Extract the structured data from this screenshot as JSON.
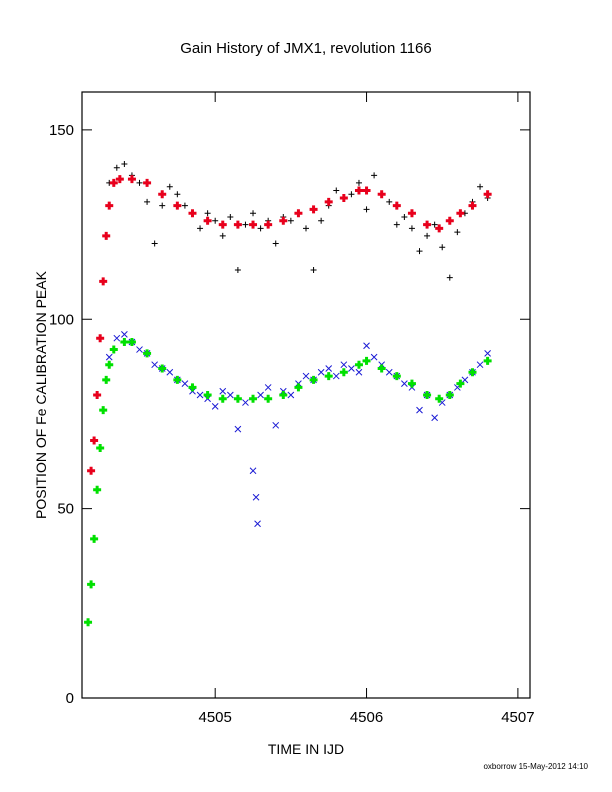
{
  "chart_data": {
    "type": "scatter",
    "title": "Gain History of JMX1, revolution 1166",
    "xlabel": "TIME IN IJD",
    "ylabel": "POSITION OF Fe CALIBRATION PEAK",
    "xlim": [
      4504.12,
      4507.08
    ],
    "ylim": [
      0,
      160
    ],
    "xticks": [
      4505,
      4506,
      4507
    ],
    "yticks": [
      0,
      50,
      100,
      150
    ],
    "grid": false,
    "footer": "oxborrow 15-May-2012 14:10",
    "series": [
      {
        "kind": "raw",
        "marker": "plus",
        "color": "#000000",
        "data": [
          [
            4504.3,
            136
          ],
          [
            4504.35,
            140
          ],
          [
            4504.4,
            141
          ],
          [
            4504.45,
            138
          ],
          [
            4504.5,
            136
          ],
          [
            4504.55,
            131
          ],
          [
            4504.6,
            120
          ],
          [
            4504.65,
            130
          ],
          [
            4504.7,
            135
          ],
          [
            4504.75,
            133
          ],
          [
            4504.8,
            130
          ],
          [
            4504.85,
            128
          ],
          [
            4504.9,
            124
          ],
          [
            4504.95,
            128
          ],
          [
            4505.0,
            126
          ],
          [
            4505.05,
            122
          ],
          [
            4505.1,
            127
          ],
          [
            4505.15,
            113
          ],
          [
            4505.2,
            125
          ],
          [
            4505.25,
            128
          ],
          [
            4505.3,
            124
          ],
          [
            4505.35,
            126
          ],
          [
            4505.4,
            120
          ],
          [
            4505.45,
            127
          ],
          [
            4505.5,
            126
          ],
          [
            4505.55,
            128
          ],
          [
            4505.6,
            124
          ],
          [
            4505.65,
            113
          ],
          [
            4505.7,
            126
          ],
          [
            4505.75,
            130
          ],
          [
            4505.8,
            134
          ],
          [
            4505.85,
            132
          ],
          [
            4505.9,
            133
          ],
          [
            4505.95,
            136
          ],
          [
            4506.0,
            129
          ],
          [
            4506.05,
            138
          ],
          [
            4506.1,
            133
          ],
          [
            4506.15,
            131
          ],
          [
            4506.2,
            125
          ],
          [
            4506.25,
            127
          ],
          [
            4506.3,
            124
          ],
          [
            4506.35,
            118
          ],
          [
            4506.4,
            122
          ],
          [
            4506.45,
            125
          ],
          [
            4506.5,
            119
          ],
          [
            4506.55,
            111
          ],
          [
            4506.6,
            123
          ],
          [
            4506.65,
            128
          ],
          [
            4506.7,
            131
          ],
          [
            4506.75,
            135
          ],
          [
            4506.8,
            132
          ]
        ]
      },
      {
        "kind": "fit",
        "marker": "plus",
        "color": "#e8001c",
        "data": [
          [
            4504.18,
            60
          ],
          [
            4504.2,
            68
          ],
          [
            4504.22,
            80
          ],
          [
            4504.24,
            95
          ],
          [
            4504.26,
            110
          ],
          [
            4504.28,
            122
          ],
          [
            4504.3,
            130
          ],
          [
            4504.33,
            136
          ],
          [
            4504.37,
            137
          ],
          [
            4504.45,
            137
          ],
          [
            4504.55,
            136
          ],
          [
            4504.65,
            133
          ],
          [
            4504.75,
            130
          ],
          [
            4504.85,
            128
          ],
          [
            4504.95,
            126
          ],
          [
            4505.05,
            125
          ],
          [
            4505.15,
            125
          ],
          [
            4505.25,
            125
          ],
          [
            4505.35,
            125
          ],
          [
            4505.45,
            126
          ],
          [
            4505.55,
            128
          ],
          [
            4505.65,
            129
          ],
          [
            4505.75,
            131
          ],
          [
            4505.85,
            132
          ],
          [
            4505.95,
            134
          ],
          [
            4506.0,
            134
          ],
          [
            4506.1,
            133
          ],
          [
            4506.2,
            130
          ],
          [
            4506.3,
            128
          ],
          [
            4506.4,
            125
          ],
          [
            4506.48,
            124
          ],
          [
            4506.55,
            126
          ],
          [
            4506.62,
            128
          ],
          [
            4506.7,
            130
          ],
          [
            4506.8,
            133
          ]
        ]
      },
      {
        "kind": "raw",
        "marker": "cross",
        "color": "#1a1ad4",
        "data": [
          [
            4504.3,
            90
          ],
          [
            4504.35,
            95
          ],
          [
            4504.4,
            96
          ],
          [
            4504.45,
            94
          ],
          [
            4504.5,
            92
          ],
          [
            4504.55,
            91
          ],
          [
            4504.6,
            88
          ],
          [
            4504.65,
            87
          ],
          [
            4504.7,
            86
          ],
          [
            4504.75,
            84
          ],
          [
            4504.8,
            83
          ],
          [
            4504.85,
            81
          ],
          [
            4504.9,
            80
          ],
          [
            4504.95,
            79
          ],
          [
            4505.0,
            77
          ],
          [
            4505.05,
            81
          ],
          [
            4505.1,
            80
          ],
          [
            4505.15,
            71
          ],
          [
            4505.2,
            78
          ],
          [
            4505.25,
            60
          ],
          [
            4505.27,
            53
          ],
          [
            4505.28,
            46
          ],
          [
            4505.3,
            80
          ],
          [
            4505.35,
            82
          ],
          [
            4505.4,
            72
          ],
          [
            4505.45,
            81
          ],
          [
            4505.5,
            80
          ],
          [
            4505.55,
            83
          ],
          [
            4505.6,
            85
          ],
          [
            4505.65,
            84
          ],
          [
            4505.7,
            86
          ],
          [
            4505.75,
            87
          ],
          [
            4505.8,
            85
          ],
          [
            4505.85,
            88
          ],
          [
            4505.9,
            87
          ],
          [
            4505.95,
            86
          ],
          [
            4506.0,
            93
          ],
          [
            4506.05,
            90
          ],
          [
            4506.1,
            88
          ],
          [
            4506.15,
            86
          ],
          [
            4506.2,
            85
          ],
          [
            4506.25,
            83
          ],
          [
            4506.3,
            82
          ],
          [
            4506.35,
            76
          ],
          [
            4506.4,
            80
          ],
          [
            4506.45,
            74
          ],
          [
            4506.5,
            78
          ],
          [
            4506.55,
            80
          ],
          [
            4506.6,
            82
          ],
          [
            4506.65,
            84
          ],
          [
            4506.7,
            86
          ],
          [
            4506.75,
            88
          ],
          [
            4506.8,
            91
          ]
        ]
      },
      {
        "kind": "fit",
        "marker": "plus",
        "color": "#00e000",
        "data": [
          [
            4504.16,
            20
          ],
          [
            4504.18,
            30
          ],
          [
            4504.2,
            42
          ],
          [
            4504.22,
            55
          ],
          [
            4504.24,
            66
          ],
          [
            4504.26,
            76
          ],
          [
            4504.28,
            84
          ],
          [
            4504.3,
            88
          ],
          [
            4504.33,
            92
          ],
          [
            4504.4,
            94
          ],
          [
            4504.45,
            94
          ],
          [
            4504.55,
            91
          ],
          [
            4504.65,
            87
          ],
          [
            4504.75,
            84
          ],
          [
            4504.85,
            82
          ],
          [
            4504.95,
            80
          ],
          [
            4505.05,
            79
          ],
          [
            4505.15,
            79
          ],
          [
            4505.25,
            79
          ],
          [
            4505.35,
            79
          ],
          [
            4505.45,
            80
          ],
          [
            4505.55,
            82
          ],
          [
            4505.65,
            84
          ],
          [
            4505.75,
            85
          ],
          [
            4505.85,
            86
          ],
          [
            4505.95,
            88
          ],
          [
            4506.0,
            89
          ],
          [
            4506.1,
            87
          ],
          [
            4506.2,
            85
          ],
          [
            4506.3,
            83
          ],
          [
            4506.4,
            80
          ],
          [
            4506.48,
            79
          ],
          [
            4506.55,
            80
          ],
          [
            4506.62,
            83
          ],
          [
            4506.7,
            86
          ],
          [
            4506.8,
            89
          ]
        ]
      }
    ]
  }
}
